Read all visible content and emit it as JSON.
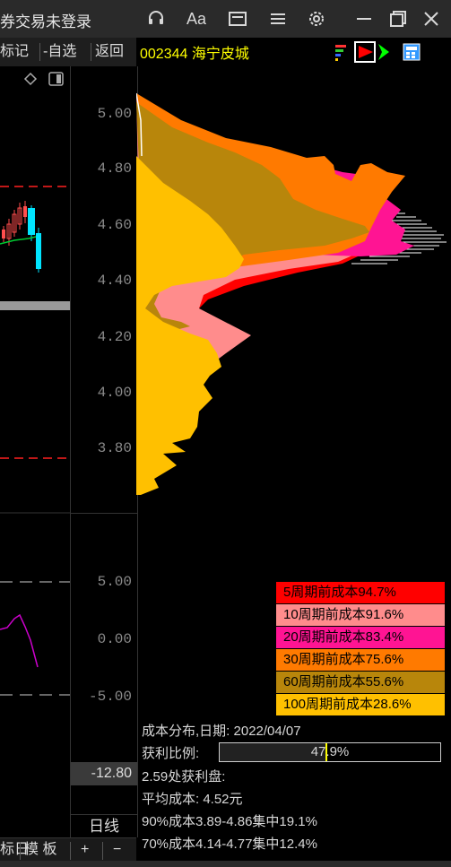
{
  "titlebar": {
    "text": "券交易未登录"
  },
  "toolbar": {
    "biaoji": "标记",
    "zixuan": "-自选",
    "fanhui": "返回"
  },
  "stock": {
    "code_name": "002344 海宁皮城"
  },
  "axis": {
    "price_ticks": [
      "5.00",
      "4.80",
      "4.60",
      "4.40",
      "4.20",
      "4.00",
      "3.80"
    ],
    "osc_ticks": [
      "5.00",
      "0.00",
      "-5.00"
    ],
    "value_box": "-12.80",
    "period": "日线"
  },
  "bottom": {
    "label1": "标日",
    "label2": "模 板",
    "plus": "+",
    "minus": "−"
  },
  "legend": [
    {
      "label": "5周期前成本94.7%",
      "color": "#ff0000"
    },
    {
      "label": "10周期前成本91.6%",
      "color": "#ff8c8c"
    },
    {
      "label": "20周期前成本83.4%",
      "color": "#ff1493"
    },
    {
      "label": "30周期前成本75.6%",
      "color": "#ff7a00"
    },
    {
      "label": "60周期前成本55.6%",
      "color": "#b8860b"
    },
    {
      "label": "100周期前成本28.6%",
      "color": "#ffc000"
    }
  ],
  "info": {
    "dist_date": "成本分布,日期:  2022/04/07",
    "profit_label": "获利比例:",
    "profit_value": "47.9%",
    "profit_ratio": 0.479,
    "profit_disk": "2.59处获利盘:",
    "avg_cost": "平均成本:  4.52元",
    "cost90": "90%成本3.89-4.86集中19.1%",
    "cost70": "70%成本4.14-4.77集中12.4%"
  },
  "colors": {
    "ma_line": "#cc00cc",
    "dash": "#ff2020",
    "price_line": "#00cc33"
  }
}
